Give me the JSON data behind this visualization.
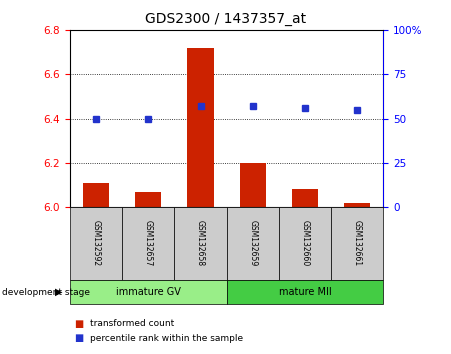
{
  "title": "GDS2300 / 1437357_at",
  "samples": [
    "GSM132592",
    "GSM132657",
    "GSM132658",
    "GSM132659",
    "GSM132660",
    "GSM132661"
  ],
  "red_values": [
    6.11,
    6.07,
    6.72,
    6.2,
    6.08,
    6.02
  ],
  "blue_values": [
    50,
    50,
    57,
    57,
    56,
    55
  ],
  "ylim_left": [
    6.0,
    6.8
  ],
  "ylim_right": [
    0,
    100
  ],
  "yticks_left": [
    6.0,
    6.2,
    6.4,
    6.6,
    6.8
  ],
  "yticks_right": [
    0,
    25,
    50,
    75,
    100
  ],
  "ytick_labels_right": [
    "0",
    "25",
    "50",
    "75",
    "100%"
  ],
  "group1_label": "immature GV",
  "group2_label": "mature MII",
  "stage_label": "development stage",
  "legend_red": "transformed count",
  "legend_blue": "percentile rank within the sample",
  "bar_color": "#cc2200",
  "dot_color": "#2233cc",
  "bar_baseline": 6.0,
  "group1_color": "#99ee88",
  "group2_color": "#44cc44",
  "sample_bg_color": "#cccccc",
  "title_fontsize": 10,
  "tick_fontsize": 7.5,
  "bar_width": 0.5
}
